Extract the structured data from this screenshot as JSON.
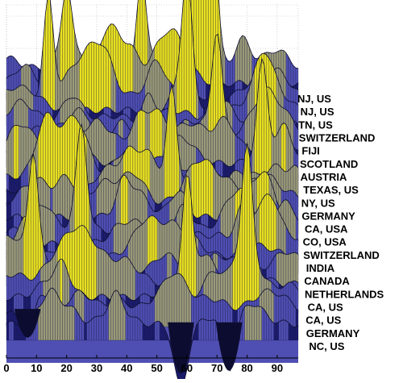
{
  "chart_data": {
    "type": "surface",
    "title": "",
    "xlabel": "",
    "ylabel": "",
    "x_ticks": [
      0,
      10,
      20,
      30,
      40,
      50,
      60,
      70,
      80,
      90
    ],
    "xlim": [
      0,
      97
    ],
    "grid": true,
    "row_labels": [
      "NJ, US",
      "NJ, US",
      "TN, US",
      "SWITZERLAND",
      "FIJI",
      "SCOTLAND",
      "AUSTRIA",
      "TEXAS, US",
      "NY, US",
      "GERMANY",
      "CA, USA",
      "CO, USA",
      "SWITZERLAND",
      "INDIA",
      "CANADA",
      "NETHERLANDS",
      "CA, US",
      "CA, US",
      "GERMANY",
      "NC, US"
    ],
    "peaks": [
      {
        "row": 0,
        "x": 63,
        "height": 0.9
      },
      {
        "row": 0,
        "x": 68,
        "height": 0.95
      },
      {
        "row": 0,
        "x": 45,
        "height": 0.45
      },
      {
        "row": 0,
        "x": 20,
        "height": 0.35
      },
      {
        "row": 2,
        "x": 14,
        "height": 0.5
      },
      {
        "row": 3,
        "x": 60,
        "height": 0.55
      },
      {
        "row": 5,
        "x": 70,
        "height": 0.5
      },
      {
        "row": 7,
        "x": 85,
        "height": 0.45
      },
      {
        "row": 9,
        "x": 55,
        "height": 0.5
      },
      {
        "row": 12,
        "x": 25,
        "height": 0.45
      },
      {
        "row": 15,
        "x": 9,
        "height": 0.55
      },
      {
        "row": 16,
        "x": 60,
        "height": 0.5
      },
      {
        "row": 17,
        "x": 80,
        "height": 0.45
      }
    ],
    "valleys": [
      {
        "row": 18,
        "x": 7,
        "depth": 0.5
      },
      {
        "row": 19,
        "x": 58,
        "depth": 0.9
      },
      {
        "row": 19,
        "x": 74,
        "depth": 0.85
      }
    ],
    "colors": {
      "surface_low": "#1c1c6e",
      "surface_mid": "#4f4fb3",
      "surface_high": "#9a9a7a",
      "surface_peak": "#e8e020",
      "mesh_line": "#101030",
      "grid_line": "#b8b8b8",
      "axis": "#000000"
    }
  }
}
